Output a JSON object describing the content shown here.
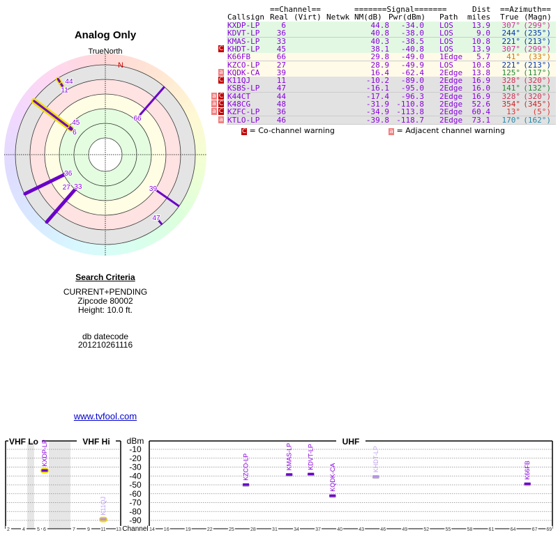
{
  "polar": {
    "title": "Analog Only",
    "north_label": "TrueNorth",
    "n_marker": "N"
  },
  "table": {
    "header_line1": {
      "channel": "==Channel==",
      "signal": "=======Signal=======",
      "dist": "Dist",
      "azimuth": "==Azimuth=="
    },
    "header_line2": {
      "callsign": "Callsign",
      "real": "Real",
      "virt": "(Virt)",
      "netwk": "Netwk",
      "nm": "NM(dB)",
      "pwr": "Pwr(dBm)",
      "path": "Path",
      "dist": "miles",
      "true": "True",
      "magn": "(Magn)"
    },
    "stations": [
      {
        "callsign": "KXDP-LP",
        "real": "6",
        "nm": "44.8",
        "pwr": "-34.0",
        "path": "LOS",
        "dist": "13.9",
        "az_true": "307°",
        "az_magn": "(299°)",
        "az_color": "#cc3399",
        "band": "green",
        "warn": [],
        "highlight": true
      },
      {
        "callsign": "KDVT-LP",
        "real": "36",
        "nm": "40.8",
        "pwr": "-38.0",
        "path": "LOS",
        "dist": "9.0",
        "az_true": "244°",
        "az_magn": "(235°)",
        "az_color": "#0033aa",
        "band": "green",
        "warn": []
      },
      {
        "callsign": "KMAS-LP",
        "real": "33",
        "nm": "40.3",
        "pwr": "-38.5",
        "path": "LOS",
        "dist": "10.8",
        "az_true": "221°",
        "az_magn": "(213°)",
        "az_color": "#0033aa",
        "band": "green",
        "warn": []
      },
      {
        "callsign": "KHDT-LP",
        "real": "45",
        "nm": "38.1",
        "pwr": "-40.8",
        "path": "LOS",
        "dist": "13.9",
        "az_true": "307°",
        "az_magn": "(299°)",
        "az_color": "#cc3399",
        "band": "green",
        "warn": [
          "c"
        ],
        "highlight": true
      },
      {
        "callsign": "K66FB",
        "real": "66",
        "nm": "29.8",
        "pwr": "-49.0",
        "path": "1Edge",
        "dist": "5.7",
        "az_true": "41°",
        "az_magn": "(33°)",
        "az_color": "#cc7700",
        "band": "yellow",
        "warn": []
      },
      {
        "callsign": "KZCO-LP",
        "real": "27",
        "nm": "28.9",
        "pwr": "-49.9",
        "path": "LOS",
        "dist": "10.8",
        "az_true": "221°",
        "az_magn": "(213°)",
        "az_color": "#0033aa",
        "band": "yellow",
        "warn": []
      },
      {
        "callsign": "KQDK-CA",
        "real": "39",
        "nm": "16.4",
        "pwr": "-62.4",
        "path": "2Edge",
        "dist": "13.8",
        "az_true": "125°",
        "az_magn": "(117°)",
        "az_color": "#228833",
        "band": "yellow",
        "warn": [
          "a"
        ]
      },
      {
        "callsign": "K11QJ",
        "real": "11",
        "nm": "-10.2",
        "pwr": "-89.0",
        "path": "2Edge",
        "dist": "16.9",
        "az_true": "328°",
        "az_magn": "(320°)",
        "az_color": "#cc3355",
        "band": "gray",
        "warn": [
          "c"
        ],
        "highlight": true
      },
      {
        "callsign": "KSBS-LP",
        "real": "47",
        "nm": "-16.1",
        "pwr": "-95.0",
        "path": "2Edge",
        "dist": "16.0",
        "az_true": "141°",
        "az_magn": "(132°)",
        "az_color": "#228833",
        "band": "gray",
        "warn": []
      },
      {
        "callsign": "K44CT",
        "real": "44",
        "nm": "-17.4",
        "pwr": "-96.3",
        "path": "2Edge",
        "dist": "16.9",
        "az_true": "328°",
        "az_magn": "(320°)",
        "az_color": "#cc3355",
        "band": "gray",
        "warn": [
          "a",
          "c"
        ],
        "highlight": true
      },
      {
        "callsign": "K48CG",
        "real": "48",
        "nm": "-31.9",
        "pwr": "-110.8",
        "path": "2Edge",
        "dist": "52.6",
        "az_true": "354°",
        "az_magn": "(345°)",
        "az_color": "#cc2222",
        "band": "gray",
        "warn": [
          "a",
          "c"
        ]
      },
      {
        "callsign": "KZFC-LP",
        "real": "36",
        "nm": "-34.9",
        "pwr": "-113.8",
        "path": "2Edge",
        "dist": "60.4",
        "az_true": "13°",
        "az_magn": "(5°)",
        "az_color": "#dd3333",
        "band": "gray",
        "warn": [
          "a",
          "c"
        ]
      },
      {
        "callsign": "KTLO-LP",
        "real": "46",
        "nm": "-39.8",
        "pwr": "-118.7",
        "path": "2Edge",
        "dist": "73.1",
        "az_true": "170°",
        "az_magn": "(162°)",
        "az_color": "#2288aa",
        "band": "gray",
        "warn": [
          "a"
        ]
      }
    ],
    "legend": {
      "co_symbol": "C",
      "co_text": "= Co-channel warning",
      "adj_symbol": "a",
      "adj_text": "= Adjacent channel warning"
    }
  },
  "criteria": {
    "heading": "Search Criteria",
    "lines": [
      "CURRENT+PENDING",
      "Zipcode 80002",
      "Height: 10.0 ft."
    ],
    "db_label": "db datecode",
    "db_value": "201210261116",
    "link": "www.tvfool.com"
  },
  "spectrum": {
    "vhf_lo": "VHF Lo",
    "vhf_hi": "VHF Hi",
    "uhf": "UHF",
    "dbm": "dBm",
    "channel": "Channel",
    "dbm_ticks": [
      "-10",
      "-20",
      "-30",
      "-40",
      "-50",
      "-60",
      "-70",
      "-80",
      "-90"
    ],
    "vhf_ticks": [
      "2",
      "4",
      "5",
      "6",
      "7",
      "9",
      "11",
      "13"
    ],
    "uhf_ticks": [
      "14",
      "16",
      "19",
      "22",
      "25",
      "28",
      "31",
      "34",
      "37",
      "40",
      "43",
      "46",
      "49",
      "52",
      "55",
      "58",
      "61",
      "64",
      "67",
      "69"
    ],
    "markers": [
      {
        "callsign": "KXDP-LP",
        "ch": 6,
        "pwr": -34.0,
        "faded": false,
        "highlight": true
      },
      {
        "callsign": "K11QJ",
        "ch": 11,
        "pwr": -89.0,
        "faded": true,
        "highlight": true
      },
      {
        "callsign": "KZCO-LP",
        "ch": 27,
        "pwr": -49.9,
        "faded": false
      },
      {
        "callsign": "KMAS-LP",
        "ch": 33,
        "pwr": -38.5,
        "faded": false
      },
      {
        "callsign": "KDVT-LP",
        "ch": 36,
        "pwr": -38.0,
        "faded": false
      },
      {
        "callsign": "KQDK-CA",
        "ch": 39,
        "pwr": -62.4,
        "faded": false
      },
      {
        "callsign": "KHDT-LP",
        "ch": 45,
        "pwr": -40.8,
        "faded": true
      },
      {
        "callsign": "K66FB",
        "ch": 66,
        "pwr": -49.0,
        "faded": false
      }
    ]
  },
  "colors": {
    "accent": "#8800dd",
    "warn_c": "#c00000",
    "warn_a": "#f08080",
    "link": "#0000cc"
  }
}
